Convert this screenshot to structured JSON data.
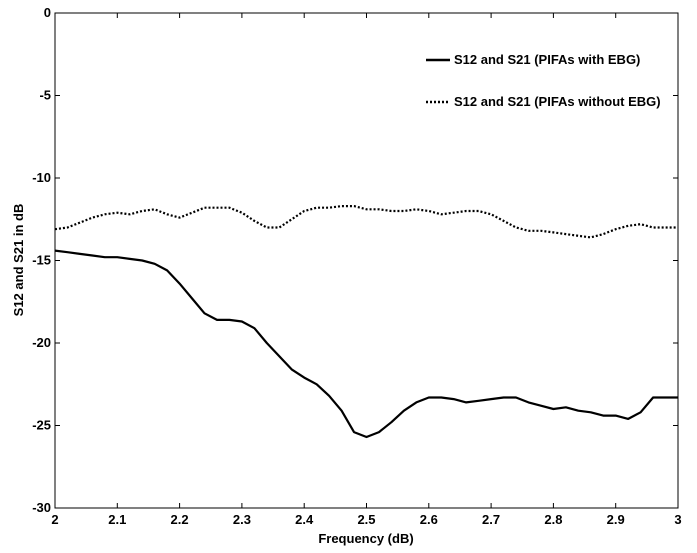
{
  "chart_data": {
    "type": "line",
    "title": "",
    "xlabel": "Frequency (dB)",
    "ylabel": "S12 and S21 in dB",
    "xlim": [
      2,
      3
    ],
    "ylim": [
      -30,
      0
    ],
    "xticks": [
      "2",
      "2.1",
      "2.2",
      "2.3",
      "2.4",
      "2.5",
      "2.6",
      "2.7",
      "2.8",
      "2.9",
      "3"
    ],
    "yticks": [
      "-30",
      "-25",
      "-20",
      "-15",
      "-10",
      "-5",
      "0"
    ],
    "grid": false,
    "legend_position": "top-right",
    "series": [
      {
        "name": "S12 and S21 (PIFAs with EBG)",
        "line_style": "solid",
        "color": "#000000",
        "x": [
          2.0,
          2.02,
          2.04,
          2.06,
          2.08,
          2.1,
          2.12,
          2.14,
          2.16,
          2.18,
          2.2,
          2.22,
          2.24,
          2.26,
          2.28,
          2.3,
          2.32,
          2.34,
          2.36,
          2.38,
          2.4,
          2.42,
          2.44,
          2.46,
          2.48,
          2.5,
          2.52,
          2.54,
          2.56,
          2.58,
          2.6,
          2.62,
          2.64,
          2.66,
          2.68,
          2.7,
          2.72,
          2.74,
          2.76,
          2.78,
          2.8,
          2.82,
          2.84,
          2.86,
          2.88,
          2.9,
          2.92,
          2.94,
          2.96,
          2.98,
          3.0
        ],
        "y": [
          -14.4,
          -14.5,
          -14.6,
          -14.7,
          -14.8,
          -14.8,
          -14.9,
          -15.0,
          -15.2,
          -15.6,
          -16.4,
          -17.3,
          -18.2,
          -18.6,
          -18.6,
          -18.7,
          -19.1,
          -20.0,
          -20.8,
          -21.6,
          -22.1,
          -22.5,
          -23.2,
          -24.1,
          -25.4,
          -25.7,
          -25.4,
          -24.8,
          -24.1,
          -23.6,
          -23.3,
          -23.3,
          -23.4,
          -23.6,
          -23.5,
          -23.4,
          -23.3,
          -23.3,
          -23.6,
          -23.8,
          -24.0,
          -23.9,
          -24.1,
          -24.2,
          -24.4,
          -24.4,
          -24.6,
          -24.2,
          -23.3,
          -23.3,
          -23.3
        ]
      },
      {
        "name": "S12 and S21 (PIFAs without EBG)",
        "line_style": "dotted",
        "color": "#000000",
        "x": [
          2.0,
          2.02,
          2.04,
          2.06,
          2.08,
          2.1,
          2.12,
          2.14,
          2.16,
          2.18,
          2.2,
          2.22,
          2.24,
          2.26,
          2.28,
          2.3,
          2.32,
          2.34,
          2.36,
          2.38,
          2.4,
          2.42,
          2.44,
          2.46,
          2.48,
          2.5,
          2.52,
          2.54,
          2.56,
          2.58,
          2.6,
          2.62,
          2.64,
          2.66,
          2.68,
          2.7,
          2.72,
          2.74,
          2.76,
          2.78,
          2.8,
          2.82,
          2.84,
          2.86,
          2.88,
          2.9,
          2.92,
          2.94,
          2.96,
          2.98,
          3.0
        ],
        "y": [
          -13.1,
          -13.0,
          -12.7,
          -12.4,
          -12.2,
          -12.1,
          -12.2,
          -12.0,
          -11.9,
          -12.2,
          -12.4,
          -12.1,
          -11.8,
          -11.8,
          -11.8,
          -12.1,
          -12.6,
          -13.0,
          -13.0,
          -12.5,
          -12.0,
          -11.8,
          -11.8,
          -11.7,
          -11.7,
          -11.9,
          -11.9,
          -12.0,
          -12.0,
          -11.9,
          -12.0,
          -12.2,
          -12.1,
          -12.0,
          -12.0,
          -12.2,
          -12.6,
          -13.0,
          -13.2,
          -13.2,
          -13.3,
          -13.4,
          -13.5,
          -13.6,
          -13.4,
          -13.1,
          -12.9,
          -12.8,
          -13.0,
          -13.0,
          -13.0
        ]
      }
    ]
  }
}
